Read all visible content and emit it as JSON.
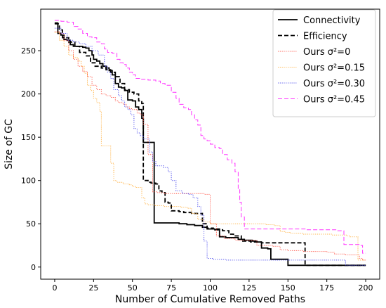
{
  "chart_data": {
    "type": "line",
    "title": "",
    "xlabel": "Number of Cumulative Removed Paths",
    "ylabel": "Size of GC",
    "xlim": [
      -9,
      209
    ],
    "ylim": [
      -14,
      298
    ],
    "xticks": [
      0,
      25,
      50,
      75,
      100,
      125,
      150,
      175,
      200
    ],
    "yticks": [
      0,
      50,
      100,
      150,
      200,
      250
    ],
    "grid": false,
    "legend_position": "top-right",
    "series": [
      {
        "name": "Connectivity",
        "color": "#000000",
        "style": "solid",
        "points": [
          [
            0,
            282
          ],
          [
            2,
            270
          ],
          [
            4,
            268
          ],
          [
            6,
            263
          ],
          [
            8,
            262
          ],
          [
            10,
            257
          ],
          [
            12,
            255
          ],
          [
            15,
            255
          ],
          [
            18,
            254
          ],
          [
            20,
            253
          ],
          [
            22,
            250
          ],
          [
            24,
            245
          ],
          [
            25,
            240
          ],
          [
            27,
            238
          ],
          [
            29,
            235
          ],
          [
            31,
            232
          ],
          [
            33,
            230
          ],
          [
            35,
            227
          ],
          [
            37,
            222
          ],
          [
            39,
            212
          ],
          [
            41,
            208
          ],
          [
            43,
            207
          ],
          [
            45,
            204
          ],
          [
            47,
            193
          ],
          [
            50,
            192
          ],
          [
            52,
            185
          ],
          [
            54,
            182
          ],
          [
            56,
            172
          ],
          [
            57,
            144
          ],
          [
            60,
            144
          ],
          [
            62,
            144
          ],
          [
            64,
            51
          ],
          [
            70,
            51
          ],
          [
            80,
            50
          ],
          [
            85,
            49
          ],
          [
            90,
            48
          ],
          [
            95,
            46
          ],
          [
            98,
            44
          ],
          [
            103,
            43
          ],
          [
            106,
            35
          ],
          [
            110,
            34
          ],
          [
            118,
            32
          ],
          [
            122,
            31
          ],
          [
            127,
            30
          ],
          [
            130,
            29
          ],
          [
            133,
            22
          ],
          [
            137,
            21
          ],
          [
            139,
            9
          ],
          [
            146,
            9
          ],
          [
            150,
            2
          ],
          [
            160,
            2
          ],
          [
            200,
            2
          ]
        ]
      },
      {
        "name": "Efficiency",
        "color": "#000000",
        "style": "dashed",
        "points": [
          [
            0,
            281
          ],
          [
            3,
            274
          ],
          [
            5,
            265
          ],
          [
            9,
            260
          ],
          [
            13,
            255
          ],
          [
            16,
            248
          ],
          [
            20,
            244
          ],
          [
            23,
            236
          ],
          [
            26,
            232
          ],
          [
            30,
            230
          ],
          [
            33,
            228
          ],
          [
            36,
            225
          ],
          [
            39,
            220
          ],
          [
            42,
            212
          ],
          [
            45,
            205
          ],
          [
            48,
            202
          ],
          [
            51,
            200
          ],
          [
            54,
            192
          ],
          [
            56,
            189
          ],
          [
            57,
            100
          ],
          [
            60,
            98
          ],
          [
            62,
            97
          ],
          [
            65,
            96
          ],
          [
            67,
            88
          ],
          [
            69,
            86
          ],
          [
            71,
            75
          ],
          [
            73,
            74
          ],
          [
            75,
            65
          ],
          [
            80,
            64
          ],
          [
            83,
            63
          ],
          [
            88,
            62
          ],
          [
            95,
            50
          ],
          [
            98,
            45
          ],
          [
            102,
            44
          ],
          [
            106,
            43
          ],
          [
            108,
            42
          ],
          [
            112,
            38
          ],
          [
            115,
            36
          ],
          [
            120,
            30
          ],
          [
            126,
            29
          ],
          [
            133,
            28
          ],
          [
            145,
            28
          ],
          [
            151,
            28
          ],
          [
            161,
            28
          ],
          [
            161,
            2
          ],
          [
            200,
            2
          ]
        ]
      },
      {
        "name": "Ours σ²=0",
        "color": "#ff5a4d",
        "style": "dotted",
        "points": [
          [
            0,
            272
          ],
          [
            3,
            270
          ],
          [
            6,
            262
          ],
          [
            9,
            250
          ],
          [
            12,
            240
          ],
          [
            15,
            232
          ],
          [
            18,
            226
          ],
          [
            21,
            220
          ],
          [
            24,
            210
          ],
          [
            27,
            205
          ],
          [
            30,
            200
          ],
          [
            33,
            198
          ],
          [
            36,
            196
          ],
          [
            39,
            192
          ],
          [
            41,
            190
          ],
          [
            44,
            188
          ],
          [
            46,
            185
          ],
          [
            48,
            183
          ],
          [
            50,
            182
          ],
          [
            53,
            178
          ],
          [
            55,
            176
          ],
          [
            57,
            165
          ],
          [
            60,
            130
          ],
          [
            63,
            87
          ],
          [
            66,
            86
          ],
          [
            70,
            85
          ],
          [
            76,
            85
          ],
          [
            88,
            85
          ],
          [
            96,
            84
          ],
          [
            100,
            50
          ],
          [
            104,
            36
          ],
          [
            109,
            33
          ],
          [
            116,
            31
          ],
          [
            124,
            31
          ],
          [
            130,
            25
          ],
          [
            140,
            24
          ],
          [
            145,
            20
          ],
          [
            150,
            19
          ],
          [
            160,
            18
          ],
          [
            175,
            17
          ],
          [
            180,
            15
          ],
          [
            187,
            14
          ],
          [
            196,
            10
          ],
          [
            198,
            8
          ],
          [
            200,
            8
          ]
        ]
      },
      {
        "name": "Ours σ²=0.15",
        "color": "#ffb347",
        "style": "dotted",
        "points": [
          [
            0,
            271
          ],
          [
            3,
            262
          ],
          [
            6,
            255
          ],
          [
            9,
            245
          ],
          [
            12,
            242
          ],
          [
            15,
            238
          ],
          [
            17,
            232
          ],
          [
            19,
            224
          ],
          [
            21,
            210
          ],
          [
            23,
            204
          ],
          [
            25,
            195
          ],
          [
            27,
            190
          ],
          [
            29,
            180
          ],
          [
            30,
            140
          ],
          [
            34,
            140
          ],
          [
            36,
            120
          ],
          [
            38,
            100
          ],
          [
            40,
            98
          ],
          [
            44,
            96
          ],
          [
            48,
            95
          ],
          [
            50,
            93
          ],
          [
            52,
            92
          ],
          [
            56,
            80
          ],
          [
            58,
            73
          ],
          [
            60,
            72
          ],
          [
            64,
            71
          ],
          [
            70,
            70
          ],
          [
            76,
            70
          ],
          [
            81,
            69
          ],
          [
            85,
            68
          ],
          [
            88,
            62
          ],
          [
            92,
            55
          ],
          [
            96,
            52
          ],
          [
            100,
            50
          ],
          [
            110,
            50
          ],
          [
            120,
            50
          ],
          [
            130,
            50
          ],
          [
            136,
            49
          ],
          [
            141,
            48
          ],
          [
            145,
            41
          ],
          [
            148,
            40
          ],
          [
            152,
            39
          ],
          [
            160,
            38
          ],
          [
            172,
            38
          ],
          [
            178,
            37
          ],
          [
            186,
            37
          ],
          [
            188,
            36
          ],
          [
            190,
            35
          ],
          [
            195,
            8
          ],
          [
            200,
            8
          ]
        ]
      },
      {
        "name": "Ours σ²=0.30",
        "color": "#5555ee",
        "style": "dotted",
        "points": [
          [
            0,
            276
          ],
          [
            4,
            270
          ],
          [
            8,
            262
          ],
          [
            12,
            260
          ],
          [
            16,
            258
          ],
          [
            20,
            255
          ],
          [
            24,
            250
          ],
          [
            28,
            245
          ],
          [
            32,
            232
          ],
          [
            34,
            225
          ],
          [
            36,
            218
          ],
          [
            38,
            205
          ],
          [
            41,
            198
          ],
          [
            43,
            192
          ],
          [
            45,
            185
          ],
          [
            47,
            182
          ],
          [
            49,
            176
          ],
          [
            51,
            160
          ],
          [
            53,
            155
          ],
          [
            55,
            152
          ],
          [
            57,
            148
          ],
          [
            59,
            148
          ],
          [
            61,
            133
          ],
          [
            63,
            122
          ],
          [
            65,
            117
          ],
          [
            70,
            115
          ],
          [
            73,
            110
          ],
          [
            75,
            100
          ],
          [
            78,
            88
          ],
          [
            82,
            85
          ],
          [
            86,
            84
          ],
          [
            89,
            80
          ],
          [
            92,
            70
          ],
          [
            94,
            60
          ],
          [
            96,
            30
          ],
          [
            98,
            10
          ],
          [
            102,
            9
          ],
          [
            110,
            8
          ],
          [
            130,
            8
          ],
          [
            150,
            8
          ],
          [
            170,
            8
          ],
          [
            186,
            8
          ],
          [
            187,
            2
          ],
          [
            200,
            2
          ]
        ]
      },
      {
        "name": "Ours σ²=0.45",
        "color": "#ff33ff",
        "style": "dashed",
        "points": [
          [
            0,
            285
          ],
          [
            4,
            284
          ],
          [
            8,
            283
          ],
          [
            12,
            278
          ],
          [
            15,
            275
          ],
          [
            18,
            270
          ],
          [
            21,
            266
          ],
          [
            24,
            265
          ],
          [
            27,
            260
          ],
          [
            30,
            258
          ],
          [
            32,
            252
          ],
          [
            34,
            248
          ],
          [
            37,
            247
          ],
          [
            40,
            240
          ],
          [
            42,
            236
          ],
          [
            44,
            234
          ],
          [
            46,
            230
          ],
          [
            48,
            225
          ],
          [
            50,
            222
          ],
          [
            52,
            218
          ],
          [
            55,
            217
          ],
          [
            60,
            216
          ],
          [
            65,
            215
          ],
          [
            68,
            212
          ],
          [
            71,
            210
          ],
          [
            75,
            202
          ],
          [
            78,
            195
          ],
          [
            80,
            188
          ],
          [
            83,
            184
          ],
          [
            86,
            182
          ],
          [
            88,
            176
          ],
          [
            90,
            170
          ],
          [
            92,
            164
          ],
          [
            94,
            152
          ],
          [
            96,
            148
          ],
          [
            98,
            146
          ],
          [
            100,
            142
          ],
          [
            103,
            138
          ],
          [
            106,
            137
          ],
          [
            108,
            130
          ],
          [
            111,
            124
          ],
          [
            114,
            120
          ],
          [
            116,
            110
          ],
          [
            118,
            90
          ],
          [
            119,
            75
          ],
          [
            120,
            58
          ],
          [
            122,
            44
          ],
          [
            126,
            44
          ],
          [
            135,
            44
          ],
          [
            150,
            44
          ],
          [
            158,
            44
          ],
          [
            162,
            43
          ],
          [
            170,
            43
          ],
          [
            182,
            42
          ],
          [
            185,
            42
          ],
          [
            186,
            26
          ],
          [
            196,
            25
          ],
          [
            198,
            16
          ],
          [
            200,
            16
          ]
        ]
      }
    ]
  }
}
